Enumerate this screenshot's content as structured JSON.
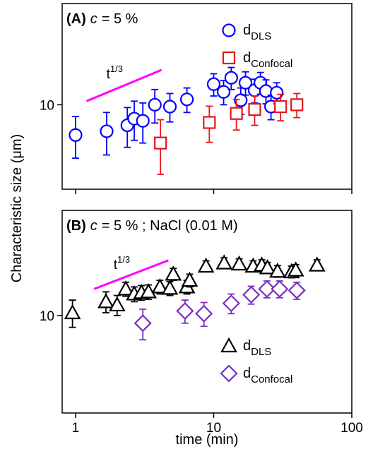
{
  "chart_data": [
    {
      "type": "scatter",
      "label": "(A)",
      "title_var": "c",
      "title": "= 5 %",
      "ylabel": "Characteristic size (μm)",
      "xlim": [
        0.8,
        100
      ],
      "ylim": [
        4,
        30
      ],
      "xlog": true,
      "ylog": true,
      "xticks": [
        1,
        10,
        100
      ],
      "yticks": [
        10
      ],
      "show_xtick_labels": false,
      "legend": "upper right",
      "guide": {
        "label": "t",
        "label_sup": "1/3",
        "color": "#ff00ff",
        "x": [
          1.2,
          4.2
        ],
        "y": [
          10.4,
          14.6
        ]
      },
      "series": [
        {
          "name": "d",
          "name_sub": "DLS",
          "color": "#0000ff",
          "marker": "circle",
          "x": [
            1,
            1.68,
            2.37,
            2.66,
            3.07,
            3.75,
            4.82,
            6.4,
            10,
            11.8,
            13.4,
            15.7,
            17,
            19.8,
            21.8,
            23.9,
            26,
            28.6
          ],
          "values": [
            7.2,
            7.5,
            8.0,
            8.6,
            8.4,
            10,
            9.8,
            10.6,
            12.5,
            11.5,
            13.4,
            10.5,
            12.7,
            11.7,
            12.7,
            11.6,
            9.8,
            11.4
          ],
          "errors": [
            1.6,
            1.7,
            1.7,
            1.8,
            1.8,
            1.8,
            1.5,
            1.4,
            1.5,
            1.5,
            1.6,
            1.5,
            1.6,
            1.5,
            1.5,
            1.5,
            1.3,
            1.3
          ]
        },
        {
          "name": "d",
          "name_sub": "Confocal",
          "color": "#e8141c",
          "marker": "square",
          "x": [
            4.12,
            9.3,
            14.6,
            19.8,
            30.5,
            40
          ],
          "values": [
            6.6,
            8.25,
            9.1,
            9.5,
            9.8,
            10
          ],
          "errors": [
            1.9,
            1.6,
            1.5,
            1.5,
            1.4,
            1.3
          ]
        }
      ]
    },
    {
      "type": "scatter",
      "label": "(B)",
      "title_var": "c",
      "title": "= 5 % ; NaCl (0.01 M)",
      "xlabel": "time (min)",
      "xlim": [
        0.8,
        100
      ],
      "ylim": [
        3.5,
        31
      ],
      "xlog": true,
      "ylog": true,
      "xticks": [
        1,
        10,
        100
      ],
      "yticks": [
        10
      ],
      "show_xtick_labels": true,
      "legend": "lower right",
      "guide": {
        "label": "t",
        "label_sup": "1/3",
        "color": "#ff00ff",
        "x": [
          1.36,
          4.7
        ],
        "y": [
          13.3,
          18.1
        ]
      },
      "series": [
        {
          "name": "d",
          "name_sub": "DLS",
          "color": "#000000",
          "marker": "triangle",
          "x": [
            0.95,
            1.66,
            2.0,
            2.31,
            2.66,
            3.0,
            3.37,
            4.08,
            4.82,
            5.1,
            6.4,
            6.7,
            8.8,
            11.9,
            15.3,
            19.3,
            22.3,
            24.5,
            29,
            36.6,
            39.3,
            56
          ],
          "values": [
            10.3,
            11.6,
            11.2,
            13.3,
            12.6,
            12.8,
            12.9,
            13.6,
            13.4,
            15.6,
            13.6,
            14.6,
            17,
            17.6,
            17.4,
            17,
            17.2,
            16.7,
            16.1,
            16,
            16.3,
            17.2
          ],
          "errors": [
            1.5,
            1.3,
            1.2,
            1,
            1,
            1,
            1,
            1,
            1,
            1,
            1,
            1,
            1,
            1,
            1,
            1,
            1,
            1,
            1,
            1,
            1,
            1
          ]
        },
        {
          "name": "d",
          "name_sub": "Confocal",
          "color": "#7b2fbe",
          "marker": "diamond",
          "x": [
            3.07,
            6.2,
            8.5,
            13.4,
            18.7,
            24.3,
            30,
            40
          ],
          "values": [
            9.2,
            10.5,
            10.2,
            11.4,
            12.5,
            13.3,
            13.3,
            13.1
          ],
          "errors": [
            1.5,
            1.3,
            1.3,
            1.2,
            1.2,
            1.2,
            1.2,
            1.2
          ]
        }
      ]
    }
  ]
}
